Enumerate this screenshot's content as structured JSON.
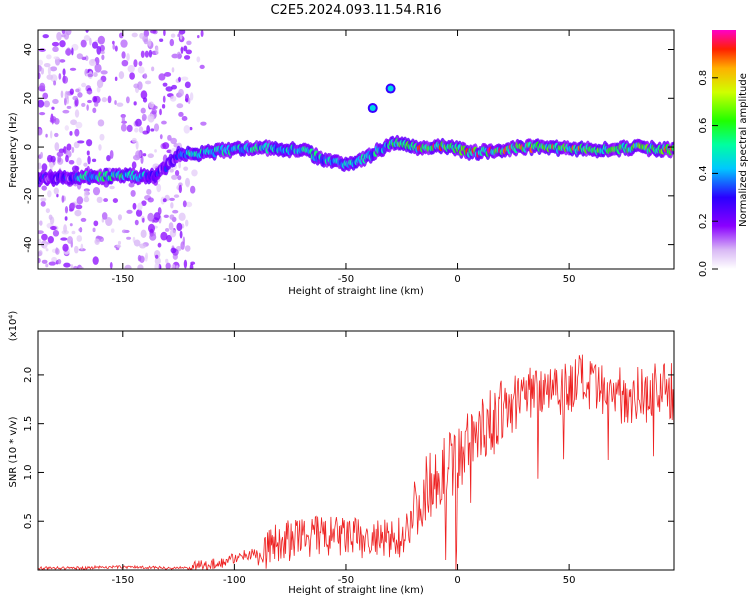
{
  "title": "C2E5.2024.093.11.54.R16",
  "chart_data": [
    {
      "type": "heatmap",
      "xlabel": "Height of straight line (km)",
      "ylabel": "Frequency (Hz)",
      "xlim": [
        -188,
        97
      ],
      "ylim": [
        -50,
        48
      ],
      "xticks": [
        -150,
        -100,
        -50,
        0,
        50
      ],
      "yticks": [
        -40,
        -20,
        0,
        20,
        40
      ],
      "colorbar": {
        "label": "Normalized spectral amplitude",
        "range": [
          0,
          1
        ],
        "ticks": [
          "0.0",
          "0.2",
          "0.4",
          "0.6",
          "0.8"
        ],
        "tick_values": [
          0,
          0.2,
          0.4,
          0.6,
          0.8
        ]
      },
      "ridge": {
        "x": [
          -188,
          -165,
          -155,
          -145,
          -135,
          -125,
          -120,
          -110,
          -100,
          -90,
          -80,
          -70,
          -60,
          -50,
          -40,
          -35,
          -30,
          -25,
          -20,
          -15,
          -10,
          -5,
          0,
          5,
          10,
          20,
          30,
          40,
          50,
          60,
          70,
          80,
          90,
          97
        ],
        "y": [
          -13,
          -12,
          -12,
          -12,
          -12,
          -3,
          -3,
          -2,
          -1,
          0,
          -1,
          -1,
          -5,
          -7,
          -4,
          -1,
          1,
          2,
          0,
          0,
          0,
          0,
          -1,
          -2,
          -2,
          -1,
          0,
          0,
          -1,
          -1,
          -1,
          0,
          -1,
          -1
        ]
      },
      "islands": [
        {
          "x": -38,
          "y": 16
        },
        {
          "x": -30,
          "y": 24
        }
      ]
    },
    {
      "type": "line",
      "xlabel": "Height of straight line (km)",
      "ylabel": "SNR (10 * v/v)",
      "multiplier": "(x10⁴)",
      "xlim": [
        -188,
        97
      ],
      "ylim": [
        0,
        2.45
      ],
      "xticks": [
        -150,
        -100,
        -50,
        0,
        50
      ],
      "yticks": [
        0.5,
        1.0,
        1.5,
        2.0
      ],
      "ytick_labels": [
        "0.5",
        "1.0",
        "1.5",
        "2.0"
      ],
      "series": [
        {
          "color": "#ee2222",
          "x": [
            -188,
            -170,
            -160,
            -150,
            -140,
            -130,
            -120,
            -115,
            -110,
            -105,
            -100,
            -95,
            -90,
            -85,
            -80,
            -75,
            -70,
            -65,
            -60,
            -55,
            -50,
            -45,
            -40,
            -35,
            -30,
            -25,
            -20,
            -15,
            -10,
            -5,
            0,
            5,
            10,
            15,
            20,
            25,
            30,
            35,
            40,
            45,
            50,
            55,
            60,
            65,
            70,
            75,
            80,
            85,
            90,
            95,
            97
          ],
          "values": [
            0.02,
            0.02,
            0.03,
            0.03,
            0.03,
            0.02,
            0.02,
            0.04,
            0.06,
            0.08,
            0.12,
            0.15,
            0.18,
            0.22,
            0.28,
            0.3,
            0.33,
            0.35,
            0.35,
            0.33,
            0.35,
            0.32,
            0.3,
            0.3,
            0.3,
            0.35,
            0.55,
            0.8,
            0.95,
            1.05,
            1.15,
            1.3,
            1.45,
            1.5,
            1.6,
            1.7,
            1.8,
            1.85,
            1.9,
            1.9,
            1.85,
            1.95,
            1.85,
            1.8,
            1.8,
            1.8,
            1.8,
            1.8,
            1.85,
            1.85,
            1.8
          ]
        }
      ]
    }
  ]
}
